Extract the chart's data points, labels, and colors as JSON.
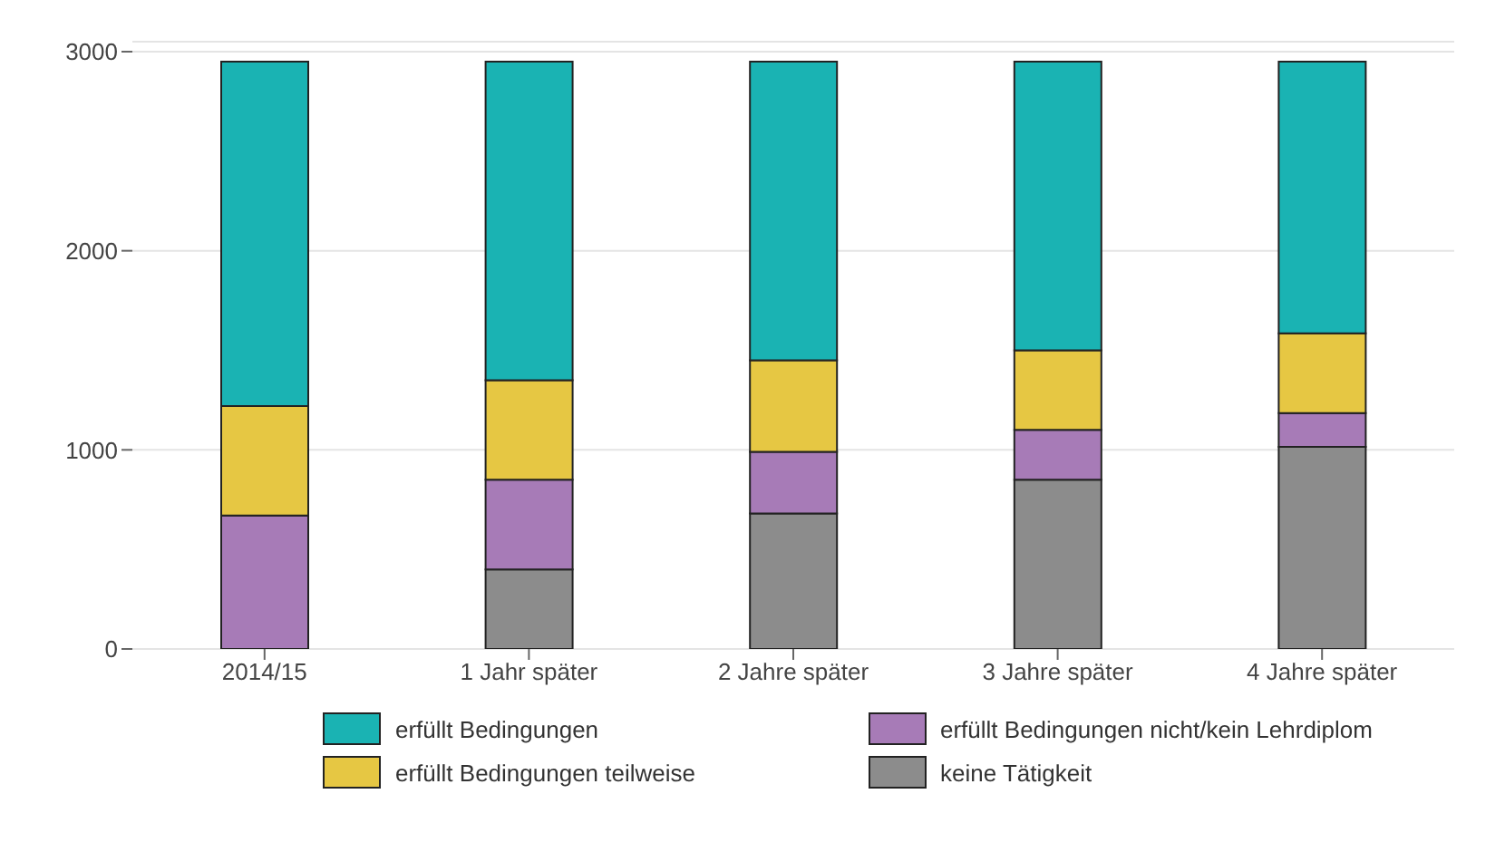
{
  "chart_data": {
    "type": "bar",
    "stacked": true,
    "categories": [
      "2014/15",
      "1 Jahr später",
      "2 Jahre später",
      "3 Jahre später",
      "4 Jahre später"
    ],
    "series": [
      {
        "name": "keine Tätigkeit",
        "color": "#8c8c8c",
        "values": [
          0,
          400,
          680,
          850,
          1015
        ]
      },
      {
        "name": "erfüllt Bedingungen nicht/kein Lehrdiplom",
        "color": "#a77bb7",
        "values": [
          670,
          450,
          310,
          250,
          170
        ]
      },
      {
        "name": "erfüllt Bedingungen teilweise",
        "color": "#e6c743",
        "values": [
          550,
          500,
          460,
          400,
          400
        ]
      },
      {
        "name": "erfüllt Bedingungen",
        "color": "#1ab3b3",
        "values": [
          1730,
          1600,
          1500,
          1450,
          1365
        ]
      }
    ],
    "ylim": [
      0,
      3050
    ],
    "yticks": [
      0,
      1000,
      2000,
      3000
    ],
    "grid": "y",
    "legend": "bottom"
  }
}
